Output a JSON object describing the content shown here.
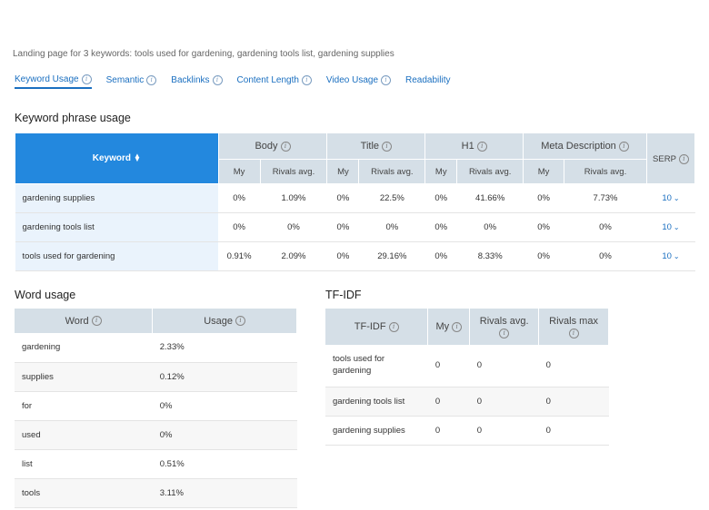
{
  "subtitle": "Landing page for 3 keywords: tools used for gardening, gardening tools list, gardening supplies",
  "tabs": [
    {
      "label": "Keyword Usage",
      "active": true,
      "info": true
    },
    {
      "label": "Semantic",
      "active": false,
      "info": true
    },
    {
      "label": "Backlinks",
      "active": false,
      "info": true
    },
    {
      "label": "Content Length",
      "active": false,
      "info": true
    },
    {
      "label": "Video Usage",
      "active": false,
      "info": true
    },
    {
      "label": "Readability",
      "active": false,
      "info": false
    }
  ],
  "keyword_phrase": {
    "title": "Keyword phrase usage",
    "keyword_header": "Keyword",
    "groups": [
      "Body",
      "Title",
      "H1",
      "Meta Description"
    ],
    "sub_my": "My",
    "sub_rivals": "Rivals avg.",
    "serp_header": "SERP",
    "rows": [
      {
        "keyword": "gardening supplies",
        "body_my": "0%",
        "body_rivals": "1.09%",
        "title_my": "0%",
        "title_rivals": "22.5%",
        "h1_my": "0%",
        "h1_rivals": "41.66%",
        "meta_my": "0%",
        "meta_rivals": "7.73%",
        "serp": "10"
      },
      {
        "keyword": "gardening tools list",
        "body_my": "0%",
        "body_rivals": "0%",
        "title_my": "0%",
        "title_rivals": "0%",
        "h1_my": "0%",
        "h1_rivals": "0%",
        "meta_my": "0%",
        "meta_rivals": "0%",
        "serp": "10"
      },
      {
        "keyword": "tools used for gardening",
        "body_my": "0.91%",
        "body_rivals": "2.09%",
        "title_my": "0%",
        "title_rivals": "29.16%",
        "h1_my": "0%",
        "h1_rivals": "8.33%",
        "meta_my": "0%",
        "meta_rivals": "0%",
        "serp": "10"
      }
    ]
  },
  "word_usage": {
    "title": "Word usage",
    "col_word": "Word",
    "col_usage": "Usage",
    "rows": [
      {
        "word": "gardening",
        "usage": "2.33%"
      },
      {
        "word": "supplies",
        "usage": "0.12%"
      },
      {
        "word": "for",
        "usage": "0%"
      },
      {
        "word": "used",
        "usage": "0%"
      },
      {
        "word": "list",
        "usage": "0.51%"
      },
      {
        "word": "tools",
        "usage": "3.11%"
      }
    ]
  },
  "tfidf": {
    "title": "TF-IDF",
    "col_tfidf": "TF-IDF",
    "col_my": "My",
    "col_rivals_avg": "Rivals avg.",
    "col_rivals_max": "Rivals max",
    "rows": [
      {
        "term": "tools used for gardening",
        "my": "0",
        "avg": "0",
        "max": "0"
      },
      {
        "term": "gardening tools list",
        "my": "0",
        "avg": "0",
        "max": "0"
      },
      {
        "term": "gardening supplies",
        "my": "0",
        "avg": "0",
        "max": "0"
      }
    ]
  },
  "icons": {
    "info": "info-icon",
    "chevron": "chevron-down-icon",
    "sort": "sort-icon"
  },
  "colors": {
    "accent": "#2388de",
    "link": "#1a6fc0",
    "header_bg": "#d5dfe7",
    "keyword_cell_bg": "#eaf3fc"
  }
}
